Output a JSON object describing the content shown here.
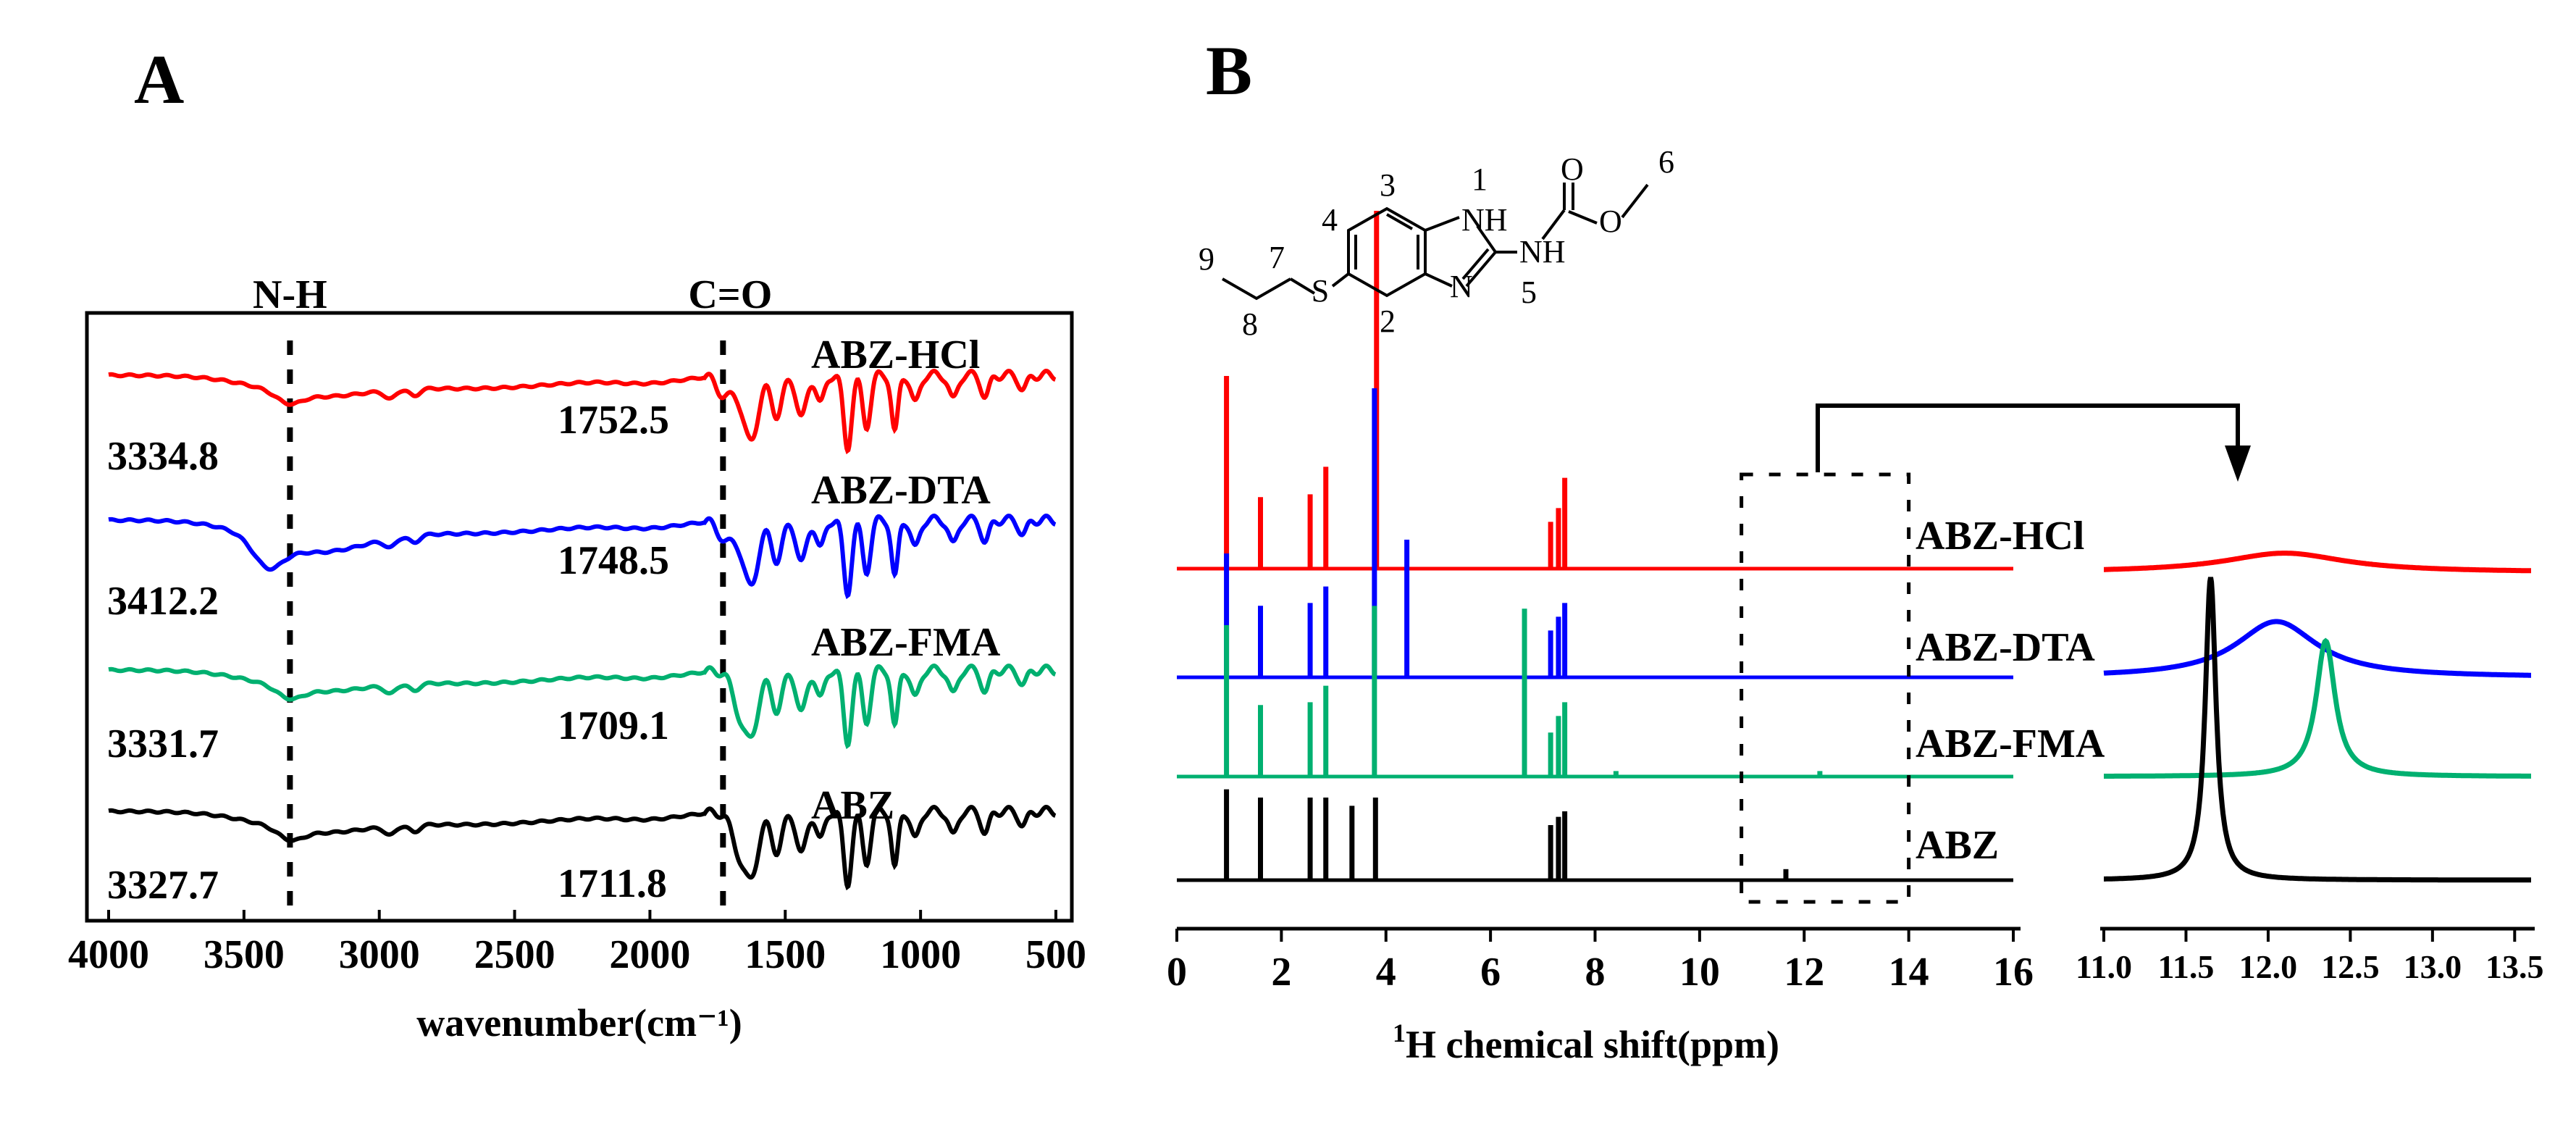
{
  "chart_data": [
    {
      "panel": "A",
      "type": "line",
      "title": "",
      "xlabel": "wavenumber(cm⁻¹)",
      "ylabel": "",
      "xlim": [
        4000,
        500
      ],
      "x_reversed": true,
      "xticks": [
        "4000",
        "3500",
        "3000",
        "2500",
        "2000",
        "1500",
        "1000",
        "500"
      ],
      "tick_values": [
        4000,
        3500,
        3000,
        2500,
        2000,
        1500,
        1000,
        500
      ],
      "annotations": {
        "nh": "N-H",
        "co": "C=O",
        "nh_pos": 3330,
        "co_pos": 1730
      },
      "series": [
        {
          "name": "ABZ-HCl",
          "label": "ABZ-HCl",
          "color": "#ff0000",
          "nh_peak": "3334.8",
          "co_peak": "1752.5"
        },
        {
          "name": "ABZ-DTA",
          "label": "ABZ-DTA",
          "color": "#0000ff",
          "nh_peak": "3412.2",
          "co_peak": "1748.5"
        },
        {
          "name": "ABZ-FMA",
          "label": "ABZ-FMA",
          "color": "#00b070",
          "nh_peak": "3331.7",
          "co_peak": "1709.1"
        },
        {
          "name": "ABZ",
          "label": "ABZ",
          "color": "#000000",
          "nh_peak": "3327.7",
          "co_peak": "1711.8"
        }
      ]
    },
    {
      "panel": "B",
      "type": "line",
      "title": "",
      "xlabel": "¹H chemical shift(ppm)",
      "xlabel_sup": "1",
      "xlabel_main": "H chemical shift(ppm)",
      "xlim": [
        0,
        16
      ],
      "xticks": [
        "0",
        "2",
        "4",
        "6",
        "8",
        "10",
        "12",
        "14",
        "16"
      ],
      "tick_values": [
        0,
        2,
        4,
        6,
        8,
        10,
        12,
        14,
        16
      ],
      "zoom_box_ppm": [
        10.8,
        14.0
      ],
      "series": [
        {
          "name": "ABZ-HCl",
          "label": "ABZ-HCl",
          "color": "#ff0000",
          "peaks_ppm": [
            0.95,
            1.6,
            2.55,
            2.85,
            3.82,
            7.15,
            7.3,
            7.42
          ],
          "peak_heights": [
            0.7,
            0.26,
            0.27,
            0.37,
            1.3,
            0.17,
            0.22,
            0.33
          ]
        },
        {
          "name": "ABZ-DTA",
          "label": "ABZ-DTA",
          "color": "#0000ff",
          "peaks_ppm": [
            0.95,
            1.6,
            2.55,
            2.85,
            3.78,
            4.4,
            7.15,
            7.3,
            7.42
          ],
          "peak_heights": [
            0.45,
            0.26,
            0.27,
            0.33,
            1.05,
            0.5,
            0.17,
            0.22,
            0.27
          ]
        },
        {
          "name": "ABZ-FMA",
          "label": "ABZ-FMA",
          "color": "#00b070",
          "peaks_ppm": [
            0.95,
            1.6,
            2.55,
            2.85,
            3.78,
            6.65,
            7.15,
            7.3,
            7.42,
            8.4,
            12.3
          ],
          "peak_heights": [
            0.55,
            0.26,
            0.27,
            0.33,
            0.62,
            0.61,
            0.16,
            0.22,
            0.27,
            0.02,
            0.02
          ]
        },
        {
          "name": "ABZ",
          "label": "ABZ",
          "color": "#000000",
          "peaks_ppm": [
            0.95,
            1.6,
            2.55,
            2.85,
            3.35,
            3.8,
            7.15,
            7.3,
            7.42,
            11.65
          ],
          "peak_heights": [
            0.33,
            0.3,
            0.3,
            0.3,
            0.27,
            0.3,
            0.2,
            0.23,
            0.25,
            0.04
          ]
        }
      ]
    },
    {
      "panel": "B-inset",
      "type": "line",
      "xlim": [
        11.0,
        13.6
      ],
      "xticks": [
        "11.0",
        "11.5",
        "12.0",
        "12.5",
        "13.0",
        "13.5"
      ],
      "tick_values": [
        11.0,
        11.5,
        12.0,
        12.5,
        13.0,
        13.5
      ],
      "series": [
        {
          "name": "ABZ-HCl",
          "color": "#ff0000",
          "peak_ppm": 12.1,
          "height": 0.12,
          "width": 0.45
        },
        {
          "name": "ABZ-DTA",
          "color": "#0000ff",
          "peak_ppm": 12.05,
          "height": 0.35,
          "width": 0.3
        },
        {
          "name": "ABZ-FMA",
          "color": "#00b070",
          "peak_ppm": 12.35,
          "height": 0.85,
          "width": 0.07
        },
        {
          "name": "ABZ",
          "color": "#000000",
          "peak_ppm": 11.65,
          "height": 1.9,
          "width": 0.04
        }
      ]
    }
  ],
  "panel_labels": {
    "a": "A",
    "b": "B"
  },
  "structure": {
    "atoms": {
      "s": "S",
      "nh1": "NH",
      "nh2": "NH",
      "n": "N",
      "o1": "O",
      "o2": "O"
    },
    "numbers": [
      "1",
      "2",
      "3",
      "4",
      "5",
      "6",
      "7",
      "8",
      "9"
    ]
  }
}
